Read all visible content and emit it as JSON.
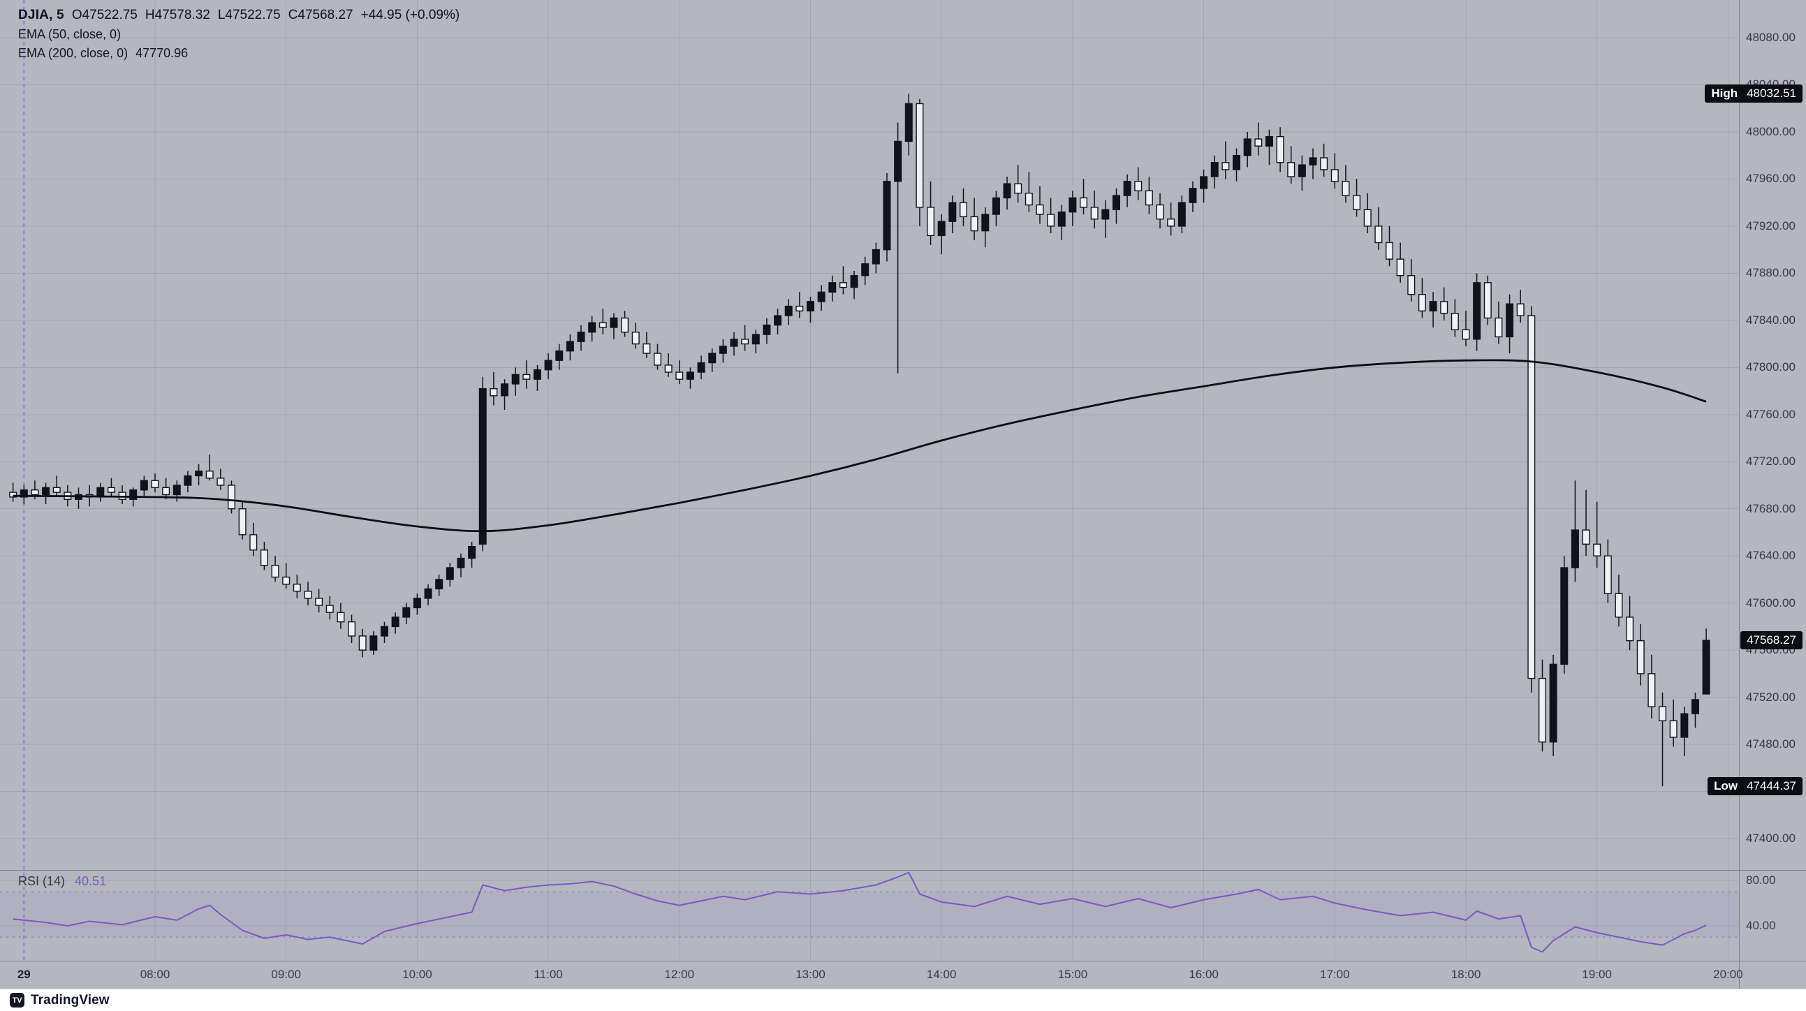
{
  "legend": {
    "symbol_interval": "DJIA, 5",
    "open": "O47522.75",
    "high": "H47578.32",
    "low": "L47522.75",
    "close": "C47568.27",
    "change": "+44.95 (+0.09%)",
    "ema50": "EMA (50, close, 0)",
    "ema200_label": "EMA (200, close, 0)",
    "ema200_value": "47770.96"
  },
  "rsi_legend": {
    "label": "RSI (14)",
    "value": "40.51"
  },
  "badges": {
    "high_label": "High",
    "high_value": "48032.51",
    "low_label": "Low",
    "low_value": "47444.37",
    "last_value": "47568.27"
  },
  "watermark": {
    "mark": "TV",
    "brand": "TradingView"
  },
  "colors": {
    "background": "#b4b7c0",
    "grid": "rgba(40,44,56,0.12)",
    "candle": "#10131a",
    "candle_down_fill": "#f0f1f4",
    "ema200_line": "#0c0e14",
    "rsi_line": "#7e57c2",
    "rsi_band_line": "rgba(126,87,194,0.55)",
    "rsi_band_fill": "rgba(126,87,194,0.07)",
    "session_break_line": "#4a5df0",
    "separator": "rgba(20,24,34,0.32)",
    "badge_bg": "#0b0d12",
    "badge_text": "#ffffff",
    "axis_text": "#363b47"
  },
  "chart_data": {
    "type": "candlestick",
    "symbol": "DJIA",
    "interval": "5",
    "session": {
      "date_label": "29",
      "time": "07:00"
    },
    "time_ticks": [
      "08:00",
      "09:00",
      "10:00",
      "11:00",
      "12:00",
      "13:00",
      "14:00",
      "15:00",
      "16:00",
      "17:00",
      "18:00",
      "19:00",
      "20:00"
    ],
    "price_ticks": [
      "48080.00",
      "48040.00",
      "48000.00",
      "47960.00",
      "47920.00",
      "47880.00",
      "47840.00",
      "47800.00",
      "47760.00",
      "47720.00",
      "47680.00",
      "47640.00",
      "47600.00",
      "47560.00",
      "47520.00",
      "47480.00",
      "47440.00",
      "47400.00"
    ],
    "rsi_ticks": [
      "80.00",
      "40.00"
    ],
    "rsi_bands": [
      70,
      30
    ],
    "high": 48032.51,
    "low": 47444.37,
    "last": 47568.27,
    "visible_price_range": [
      47373,
      48112
    ],
    "visible_time_range": [
      "06:55",
      "20:05"
    ],
    "start_time": "06:55",
    "step_minutes": 5,
    "ohlc": [
      [
        47694,
        47702,
        47686,
        47690
      ],
      [
        47690,
        47700,
        47684,
        47696
      ],
      [
        47696,
        47704,
        47688,
        47692
      ],
      [
        47692,
        47702,
        47684,
        47698
      ],
      [
        47698,
        47708,
        47690,
        47694
      ],
      [
        47694,
        47700,
        47682,
        47688
      ],
      [
        47688,
        47698,
        47680,
        47692
      ],
      [
        47692,
        47700,
        47682,
        47690
      ],
      [
        47690,
        47702,
        47686,
        47698
      ],
      [
        47698,
        47706,
        47690,
        47694
      ],
      [
        47694,
        47700,
        47684,
        47688
      ],
      [
        47688,
        47698,
        47682,
        47696
      ],
      [
        47696,
        47708,
        47690,
        47704
      ],
      [
        47704,
        47710,
        47694,
        47698
      ],
      [
        47698,
        47706,
        47688,
        47692
      ],
      [
        47692,
        47704,
        47686,
        47700
      ],
      [
        47700,
        47712,
        47694,
        47708
      ],
      [
        47708,
        47718,
        47700,
        47712
      ],
      [
        47712,
        47726,
        47704,
        47706
      ],
      [
        47706,
        47714,
        47696,
        47700
      ],
      [
        47700,
        47704,
        47676,
        47680
      ],
      [
        47680,
        47686,
        47654,
        47658
      ],
      [
        47658,
        47668,
        47640,
        47645
      ],
      [
        47645,
        47652,
        47628,
        47632
      ],
      [
        47632,
        47640,
        47618,
        47622
      ],
      [
        47622,
        47634,
        47612,
        47616
      ],
      [
        47616,
        47624,
        47604,
        47610
      ],
      [
        47610,
        47618,
        47598,
        47604
      ],
      [
        47604,
        47612,
        47592,
        47598
      ],
      [
        47598,
        47606,
        47586,
        47592
      ],
      [
        47592,
        47600,
        47578,
        47584
      ],
      [
        47584,
        47590,
        47566,
        47572
      ],
      [
        47572,
        47578,
        47554,
        47560
      ],
      [
        47560,
        47576,
        47556,
        47572
      ],
      [
        47572,
        47584,
        47566,
        47580
      ],
      [
        47580,
        47592,
        47574,
        47588
      ],
      [
        47588,
        47600,
        47582,
        47596
      ],
      [
        47596,
        47608,
        47590,
        47604
      ],
      [
        47604,
        47616,
        47598,
        47612
      ],
      [
        47612,
        47624,
        47606,
        47620
      ],
      [
        47620,
        47634,
        47614,
        47630
      ],
      [
        47630,
        47642,
        47622,
        47638
      ],
      [
        47638,
        47652,
        47630,
        47648
      ],
      [
        47650,
        47792,
        47644,
        47782
      ],
      [
        47782,
        47796,
        47768,
        47776
      ],
      [
        47776,
        47790,
        47764,
        47786
      ],
      [
        47786,
        47800,
        47776,
        47794
      ],
      [
        47794,
        47806,
        47782,
        47790
      ],
      [
        47790,
        47802,
        47780,
        47798
      ],
      [
        47798,
        47812,
        47790,
        47806
      ],
      [
        47806,
        47820,
        47798,
        47814
      ],
      [
        47814,
        47828,
        47806,
        47822
      ],
      [
        47822,
        47836,
        47814,
        47830
      ],
      [
        47830,
        47844,
        47822,
        47838
      ],
      [
        47838,
        47850,
        47828,
        47834
      ],
      [
        47834,
        47846,
        47824,
        47842
      ],
      [
        47842,
        47848,
        47826,
        47830
      ],
      [
        47830,
        47838,
        47816,
        47820
      ],
      [
        47820,
        47830,
        47808,
        47812
      ],
      [
        47812,
        47820,
        47798,
        47802
      ],
      [
        47802,
        47812,
        47792,
        47796
      ],
      [
        47796,
        47806,
        47786,
        47790
      ],
      [
        47790,
        47800,
        47782,
        47796
      ],
      [
        47796,
        47810,
        47790,
        47804
      ],
      [
        47804,
        47816,
        47796,
        47812
      ],
      [
        47812,
        47824,
        47804,
        47818
      ],
      [
        47818,
        47830,
        47810,
        47824
      ],
      [
        47824,
        47836,
        47814,
        47820
      ],
      [
        47820,
        47832,
        47812,
        47828
      ],
      [
        47828,
        47842,
        47820,
        47836
      ],
      [
        47836,
        47850,
        47828,
        47844
      ],
      [
        47844,
        47858,
        47836,
        47852
      ],
      [
        47852,
        47864,
        47842,
        47848
      ],
      [
        47848,
        47860,
        47838,
        47856
      ],
      [
        47856,
        47870,
        47848,
        47864
      ],
      [
        47864,
        47878,
        47856,
        47872
      ],
      [
        47872,
        47886,
        47862,
        47868
      ],
      [
        47868,
        47882,
        47858,
        47878
      ],
      [
        47878,
        47894,
        47870,
        47888
      ],
      [
        47888,
        47906,
        47880,
        47900
      ],
      [
        47900,
        47965,
        47890,
        47958
      ],
      [
        47958,
        48008,
        47795,
        47992
      ],
      [
        47992,
        48032.51,
        47980,
        48024
      ],
      [
        48024,
        48028,
        47920,
        47936
      ],
      [
        47936,
        47958,
        47904,
        47912
      ],
      [
        47912,
        47930,
        47896,
        47924
      ],
      [
        47924,
        47946,
        47914,
        47940
      ],
      [
        47940,
        47952,
        47920,
        47928
      ],
      [
        47928,
        47944,
        47908,
        47916
      ],
      [
        47916,
        47936,
        47902,
        47930
      ],
      [
        47930,
        47950,
        47920,
        47944
      ],
      [
        47944,
        47962,
        47934,
        47956
      ],
      [
        47956,
        47972,
        47940,
        47948
      ],
      [
        47948,
        47966,
        47932,
        47938
      ],
      [
        47938,
        47954,
        47922,
        47930
      ],
      [
        47930,
        47944,
        47914,
        47920
      ],
      [
        47920,
        47938,
        47908,
        47932
      ],
      [
        47932,
        47950,
        47920,
        47944
      ],
      [
        47944,
        47960,
        47930,
        47936
      ],
      [
        47936,
        47950,
        47918,
        47926
      ],
      [
        47926,
        47942,
        47910,
        47934
      ],
      [
        47934,
        47952,
        47922,
        47946
      ],
      [
        47946,
        47964,
        47936,
        47958
      ],
      [
        47958,
        47970,
        47942,
        47950
      ],
      [
        47950,
        47962,
        47930,
        47938
      ],
      [
        47938,
        47948,
        47918,
        47926
      ],
      [
        47926,
        47940,
        47912,
        47920
      ],
      [
        47920,
        47946,
        47914,
        47940
      ],
      [
        47940,
        47958,
        47932,
        47952
      ],
      [
        47952,
        47968,
        47940,
        47962
      ],
      [
        47962,
        47980,
        47952,
        47974
      ],
      [
        47974,
        47992,
        47960,
        47968
      ],
      [
        47968,
        47986,
        47958,
        47980
      ],
      [
        47980,
        48000,
        47970,
        47994
      ],
      [
        47994,
        48008,
        47980,
        47988
      ],
      [
        47988,
        48002,
        47972,
        47996
      ],
      [
        47996,
        48004,
        47966,
        47974
      ],
      [
        47974,
        47988,
        47956,
        47962
      ],
      [
        47962,
        47980,
        47950,
        47972
      ],
      [
        47972,
        47986,
        47960,
        47978
      ],
      [
        47978,
        47990,
        47962,
        47968
      ],
      [
        47968,
        47982,
        47952,
        47958
      ],
      [
        47958,
        47972,
        47940,
        47946
      ],
      [
        47946,
        47960,
        47928,
        47934
      ],
      [
        47934,
        47948,
        47914,
        47920
      ],
      [
        47920,
        47936,
        47900,
        47906
      ],
      [
        47906,
        47920,
        47886,
        47892
      ],
      [
        47892,
        47906,
        47872,
        47878
      ],
      [
        47878,
        47892,
        47856,
        47862
      ],
      [
        47862,
        47876,
        47842,
        47848
      ],
      [
        47848,
        47864,
        47834,
        47856
      ],
      [
        47856,
        47868,
        47840,
        47846
      ],
      [
        47846,
        47858,
        47826,
        47832
      ],
      [
        47832,
        47848,
        47818,
        47824
      ],
      [
        47824,
        47880,
        47814,
        47872
      ],
      [
        47872,
        47878,
        47836,
        47842
      ],
      [
        47842,
        47856,
        47820,
        47826
      ],
      [
        47826,
        47862,
        47812,
        47854
      ],
      [
        47854,
        47866,
        47838,
        47844
      ],
      [
        47844,
        47852,
        47524,
        47536
      ],
      [
        47536,
        47552,
        47474,
        47482
      ],
      [
        47482,
        47556,
        47470,
        47548
      ],
      [
        47548,
        47640,
        47540,
        47630
      ],
      [
        47630,
        47704,
        47618,
        47662
      ],
      [
        47662,
        47696,
        47640,
        47650
      ],
      [
        47650,
        47686,
        47630,
        47640
      ],
      [
        47640,
        47654,
        47600,
        47608
      ],
      [
        47608,
        47624,
        47580,
        47588
      ],
      [
        47588,
        47606,
        47560,
        47568
      ],
      [
        47568,
        47582,
        47530,
        47540
      ],
      [
        47540,
        47556,
        47502,
        47512
      ],
      [
        47512,
        47524,
        47444.37,
        47500
      ],
      [
        47500,
        47518,
        47478,
        47486
      ],
      [
        47486,
        47512,
        47470,
        47506
      ],
      [
        47506,
        47524,
        47494,
        47518
      ],
      [
        47522.75,
        47578.32,
        47522.75,
        47568.27
      ]
    ],
    "ema200": [
      [
        "06:55",
        47691
      ],
      [
        "08:00",
        47690
      ],
      [
        "08:30",
        47688
      ],
      [
        "09:00",
        47682
      ],
      [
        "09:30",
        47673
      ],
      [
        "10:00",
        47665
      ],
      [
        "10:30",
        47661
      ],
      [
        "11:00",
        47666
      ],
      [
        "11:30",
        47675
      ],
      [
        "12:00",
        47685
      ],
      [
        "12:30",
        47696
      ],
      [
        "13:00",
        47708
      ],
      [
        "13:30",
        47722
      ],
      [
        "14:00",
        47738
      ],
      [
        "14:30",
        47752
      ],
      [
        "15:00",
        47764
      ],
      [
        "15:30",
        47775
      ],
      [
        "16:00",
        47784
      ],
      [
        "16:30",
        47793
      ],
      [
        "17:00",
        47800
      ],
      [
        "17:30",
        47804
      ],
      [
        "18:00",
        47806
      ],
      [
        "18:30",
        47805
      ],
      [
        "19:00",
        47796
      ],
      [
        "19:30",
        47783
      ],
      [
        "19:50",
        47770.96
      ]
    ],
    "rsi14": [
      [
        "06:55",
        46
      ],
      [
        "07:10",
        43
      ],
      [
        "07:20",
        40
      ],
      [
        "07:30",
        44
      ],
      [
        "07:45",
        41
      ],
      [
        "08:00",
        48
      ],
      [
        "08:10",
        45
      ],
      [
        "08:20",
        55
      ],
      [
        "08:25",
        58
      ],
      [
        "08:30",
        50
      ],
      [
        "08:40",
        36
      ],
      [
        "08:50",
        29
      ],
      [
        "09:00",
        32
      ],
      [
        "09:10",
        28
      ],
      [
        "09:20",
        30
      ],
      [
        "09:30",
        26
      ],
      [
        "09:35",
        24
      ],
      [
        "09:45",
        35
      ],
      [
        "10:00",
        42
      ],
      [
        "10:15",
        48
      ],
      [
        "10:25",
        52
      ],
      [
        "10:30",
        76
      ],
      [
        "10:40",
        71
      ],
      [
        "10:50",
        74
      ],
      [
        "11:00",
        76
      ],
      [
        "11:10",
        77
      ],
      [
        "11:20",
        79
      ],
      [
        "11:30",
        75
      ],
      [
        "11:40",
        68
      ],
      [
        "11:50",
        62
      ],
      [
        "12:00",
        58
      ],
      [
        "12:10",
        62
      ],
      [
        "12:20",
        66
      ],
      [
        "12:30",
        63
      ],
      [
        "12:45",
        70
      ],
      [
        "13:00",
        68
      ],
      [
        "13:15",
        71
      ],
      [
        "13:30",
        76
      ],
      [
        "13:40",
        83
      ],
      [
        "13:45",
        87
      ],
      [
        "13:50",
        68
      ],
      [
        "14:00",
        61
      ],
      [
        "14:15",
        57
      ],
      [
        "14:30",
        66
      ],
      [
        "14:45",
        59
      ],
      [
        "15:00",
        64
      ],
      [
        "15:15",
        57
      ],
      [
        "15:30",
        64
      ],
      [
        "15:45",
        56
      ],
      [
        "16:00",
        63
      ],
      [
        "16:15",
        68
      ],
      [
        "16:25",
        72
      ],
      [
        "16:35",
        63
      ],
      [
        "16:50",
        66
      ],
      [
        "17:00",
        60
      ],
      [
        "17:15",
        54
      ],
      [
        "17:30",
        49
      ],
      [
        "17:45",
        52
      ],
      [
        "18:00",
        45
      ],
      [
        "18:05",
        53
      ],
      [
        "18:15",
        46
      ],
      [
        "18:25",
        49
      ],
      [
        "18:30",
        21
      ],
      [
        "18:35",
        17
      ],
      [
        "18:40",
        27
      ],
      [
        "18:50",
        39
      ],
      [
        "19:00",
        34
      ],
      [
        "19:10",
        30
      ],
      [
        "19:20",
        26
      ],
      [
        "19:30",
        23
      ],
      [
        "19:40",
        33
      ],
      [
        "19:45",
        36
      ],
      [
        "19:50",
        40.51
      ]
    ]
  }
}
